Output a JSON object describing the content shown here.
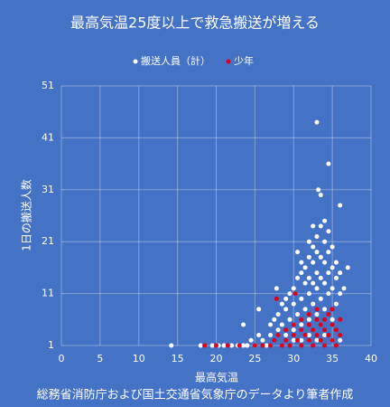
{
  "chart_data": {
    "type": "scatter",
    "title": "最高気温25度以上で救急搬送が増える",
    "x_label": "最高気温",
    "y_label": "1日の搬送人数",
    "source": "総務省消防庁および国土交通省気象庁のデータより筆者作成",
    "xlim": [
      0,
      40
    ],
    "xticks": [
      0,
      5,
      10,
      15,
      20,
      25,
      30,
      35,
      40
    ],
    "ylim": [
      1,
      51
    ],
    "yticks": [
      1,
      11,
      21,
      31,
      41,
      51
    ],
    "grid": true,
    "legend": "top",
    "series": [
      {
        "name": "搬送人員（計）",
        "color": "#ffffff",
        "x": [
          14.2,
          18,
          19.5,
          20.3,
          21,
          22,
          22.8,
          23.5,
          23.5,
          24,
          24.5,
          25,
          25.5,
          25.5,
          26,
          26.5,
          27,
          27,
          27.5,
          27.8,
          28,
          28,
          28.5,
          28.5,
          29,
          29,
          29,
          29.5,
          29.5,
          30,
          30,
          30,
          30.5,
          30.5,
          30.5,
          31,
          31,
          31,
          31,
          31.5,
          31.5,
          31.5,
          32,
          32,
          32,
          32,
          32,
          32.5,
          32.5,
          32.5,
          32.5,
          32.5,
          33,
          33,
          33,
          33,
          33,
          33,
          33.2,
          33.5,
          33.5,
          33.5,
          33.5,
          33.5,
          34,
          34,
          34,
          34,
          34,
          34.5,
          34.5,
          34.5,
          34.5,
          34.5,
          35,
          35,
          35,
          35,
          35.5,
          35.5,
          35.5,
          36,
          36,
          36,
          36.5,
          37,
          35,
          34,
          33,
          32,
          31,
          30,
          36
        ],
        "values": [
          1,
          1,
          1,
          1,
          1,
          1,
          1,
          1,
          5,
          1,
          2,
          1,
          3,
          8,
          2,
          1,
          3,
          5,
          6,
          12,
          4,
          7,
          9,
          5,
          3,
          8,
          10,
          6,
          11,
          4,
          9,
          12,
          7,
          14,
          19,
          5,
          10,
          15,
          17,
          8,
          13,
          16,
          6,
          11,
          14,
          18,
          21,
          9,
          13,
          17,
          20,
          24,
          44,
          7,
          12,
          15,
          19,
          22,
          31,
          10,
          14,
          18,
          24,
          30,
          8,
          13,
          17,
          21,
          25,
          36,
          11,
          15,
          19,
          23,
          6,
          12,
          16,
          20,
          9,
          14,
          17,
          28,
          11,
          15,
          12,
          16,
          2,
          3,
          2,
          3,
          2,
          2,
          2
        ]
      },
      {
        "name": "少年",
        "color": "#e0001b",
        "x": [
          18.5,
          20,
          21.5,
          23,
          25,
          26,
          27,
          27.5,
          27.8,
          28,
          28.5,
          29,
          29,
          29.5,
          30,
          30,
          30.2,
          30.5,
          31,
          31,
          31,
          31.5,
          32,
          32,
          32,
          32.5,
          32.5,
          33,
          33,
          33,
          33.5,
          33.5,
          34,
          34,
          34,
          34.5,
          34.5,
          35,
          35,
          35,
          35.5,
          35.5,
          36,
          36
        ],
        "values": [
          1,
          1,
          1,
          1,
          1,
          1,
          1,
          2,
          10,
          3,
          1,
          2,
          4,
          1,
          3,
          5,
          11,
          2,
          1,
          4,
          6,
          3,
          2,
          5,
          7,
          1,
          4,
          3,
          6,
          8,
          2,
          5,
          1,
          4,
          6,
          3,
          7,
          2,
          5,
          8,
          1,
          4,
          3,
          6
        ]
      }
    ]
  }
}
